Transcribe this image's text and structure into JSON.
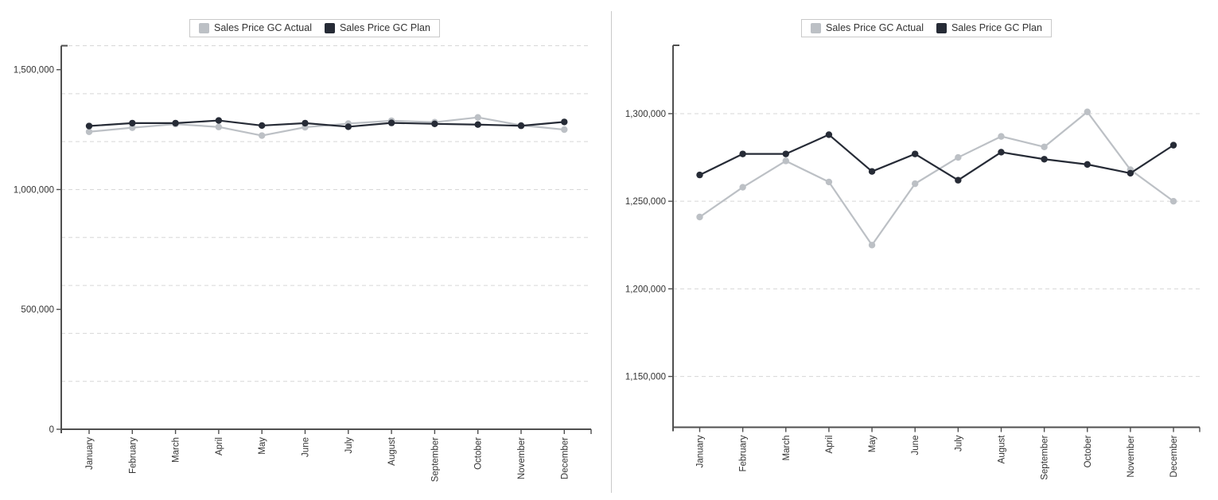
{
  "legend": {
    "items": [
      {
        "label": "Sales Price GC Actual",
        "color": "#bcc0c5"
      },
      {
        "label": "Sales Price GC Plan",
        "color": "#262b36"
      }
    ]
  },
  "colors": {
    "actual_series": "#bcc0c5",
    "plan_series": "#262b36",
    "gridline": "#d7d7d7",
    "axis": "#4f4f4f",
    "tick_label": "#333333",
    "legend_border": "#c9c9c9"
  },
  "chart_data": [
    {
      "type": "line",
      "title": "",
      "xlabel": "",
      "ylabel": "",
      "legend_position": "top",
      "grid": "dashed-horizontal",
      "categories": [
        "January",
        "February",
        "March",
        "April",
        "May",
        "June",
        "July",
        "August",
        "September",
        "October",
        "November",
        "December"
      ],
      "series": [
        {
          "name": "Sales Price GC Actual",
          "color": "#bcc0c5",
          "values": [
            1241000,
            1258000,
            1273000,
            1261000,
            1225000,
            1260000,
            1275000,
            1287000,
            1281000,
            1301000,
            1268000,
            1250000
          ]
        },
        {
          "name": "Sales Price GC Plan",
          "color": "#262b36",
          "values": [
            1265000,
            1277000,
            1277000,
            1288000,
            1267000,
            1277000,
            1262000,
            1278000,
            1274000,
            1271000,
            1266000,
            1282000
          ]
        }
      ],
      "ylim": [
        0,
        1600000
      ],
      "ytick_labels": [
        0,
        500000,
        1000000,
        1500000
      ],
      "gridlines": [
        200000,
        400000,
        600000,
        800000,
        1000000,
        1200000,
        1400000,
        1600000
      ]
    },
    {
      "type": "line",
      "title": "",
      "xlabel": "",
      "ylabel": "",
      "legend_position": "top",
      "grid": "dashed-horizontal",
      "categories": [
        "January",
        "February",
        "March",
        "April",
        "May",
        "June",
        "July",
        "August",
        "September",
        "October",
        "November",
        "December"
      ],
      "series": [
        {
          "name": "Sales Price GC Actual",
          "color": "#bcc0c5",
          "values": [
            1241000,
            1258000,
            1273000,
            1261000,
            1225000,
            1260000,
            1275000,
            1287000,
            1281000,
            1301000,
            1268000,
            1250000
          ]
        },
        {
          "name": "Sales Price GC Plan",
          "color": "#262b36",
          "values": [
            1265000,
            1277000,
            1277000,
            1288000,
            1267000,
            1277000,
            1262000,
            1278000,
            1274000,
            1271000,
            1266000,
            1282000
          ]
        }
      ],
      "ylim": [
        1121000,
        1339000
      ],
      "ytick_labels": [
        1150000,
        1200000,
        1250000,
        1300000
      ],
      "gridlines": [
        1150000,
        1200000,
        1250000,
        1300000
      ]
    }
  ]
}
